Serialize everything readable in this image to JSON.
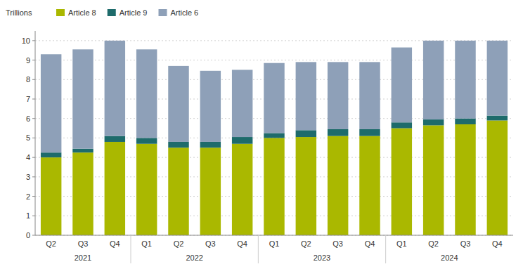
{
  "chart_data": {
    "type": "bar",
    "stacked": true,
    "ylabel": "Trillions",
    "categories": [
      "Q2",
      "Q3",
      "Q4",
      "Q1",
      "Q2",
      "Q3",
      "Q4",
      "Q1",
      "Q2",
      "Q3",
      "Q4",
      "Q1",
      "Q2",
      "Q3",
      "Q4"
    ],
    "category_groups": [
      2021,
      2021,
      2021,
      2022,
      2022,
      2022,
      2022,
      2023,
      2023,
      2023,
      2023,
      2024,
      2024,
      2024,
      2024
    ],
    "series": [
      {
        "name": "Article 8",
        "color": "#aab800",
        "values": [
          4.0,
          4.25,
          4.8,
          4.7,
          4.5,
          4.5,
          4.7,
          5.0,
          5.05,
          5.1,
          5.1,
          5.5,
          5.65,
          5.7,
          5.9
        ]
      },
      {
        "name": "Article 9",
        "color": "#1e6b6b",
        "values": [
          0.25,
          0.2,
          0.3,
          0.3,
          0.3,
          0.3,
          0.35,
          0.25,
          0.35,
          0.35,
          0.35,
          0.3,
          0.3,
          0.3,
          0.25
        ]
      },
      {
        "name": "Article 6",
        "color": "#8ea0b8",
        "values": [
          5.05,
          5.1,
          4.9,
          4.55,
          3.9,
          3.65,
          3.45,
          3.6,
          3.5,
          3.45,
          3.45,
          3.85,
          4.05,
          4.0,
          3.85
        ]
      }
    ],
    "ylim": [
      0,
      10.5
    ],
    "yticks": [
      0,
      1,
      2,
      3,
      4,
      5,
      6,
      7,
      8,
      9,
      10
    ],
    "grid": true,
    "legend": "top-left"
  }
}
